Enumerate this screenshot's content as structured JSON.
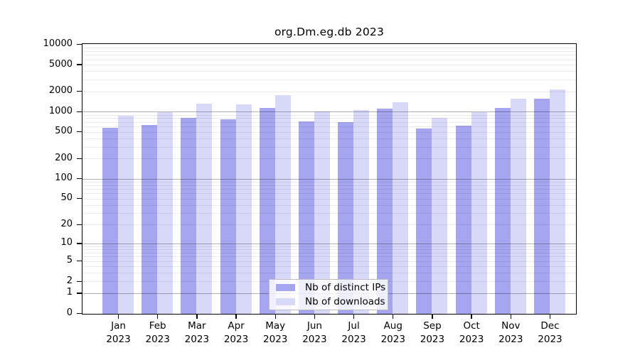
{
  "chart_data": {
    "type": "bar",
    "title": "org.Dm.eg.db 2023",
    "months": [
      "Jan",
      "Feb",
      "Mar",
      "Apr",
      "May",
      "Jun",
      "Jul",
      "Aug",
      "Sep",
      "Oct",
      "Nov",
      "Dec"
    ],
    "year": "2023",
    "series": [
      {
        "name": "Nb of distinct IPs",
        "color": "#a5a5f0",
        "values": [
          585,
          635,
          825,
          775,
          1140,
          720,
          705,
          1120,
          570,
          620,
          1160,
          1560
        ]
      },
      {
        "name": "Nb of downloads",
        "color": "#d8d8f8",
        "values": [
          875,
          990,
          1320,
          1310,
          1780,
          1020,
          1080,
          1395,
          825,
          995,
          1560,
          2140
        ]
      }
    ],
    "yscale": "log10(value+1)",
    "ylim": [
      0,
      10000
    ],
    "yticks": [
      0,
      1,
      2,
      5,
      10,
      20,
      50,
      100,
      200,
      500,
      1000,
      2000,
      5000,
      10000
    ],
    "grid": "horizontal minor lines at 2-9 per decade, darker lines at 1/10/100/1000",
    "legend_position": "bottom-center",
    "legend_labels": [
      "Nb of distinct IPs",
      "Nb of downloads"
    ]
  }
}
